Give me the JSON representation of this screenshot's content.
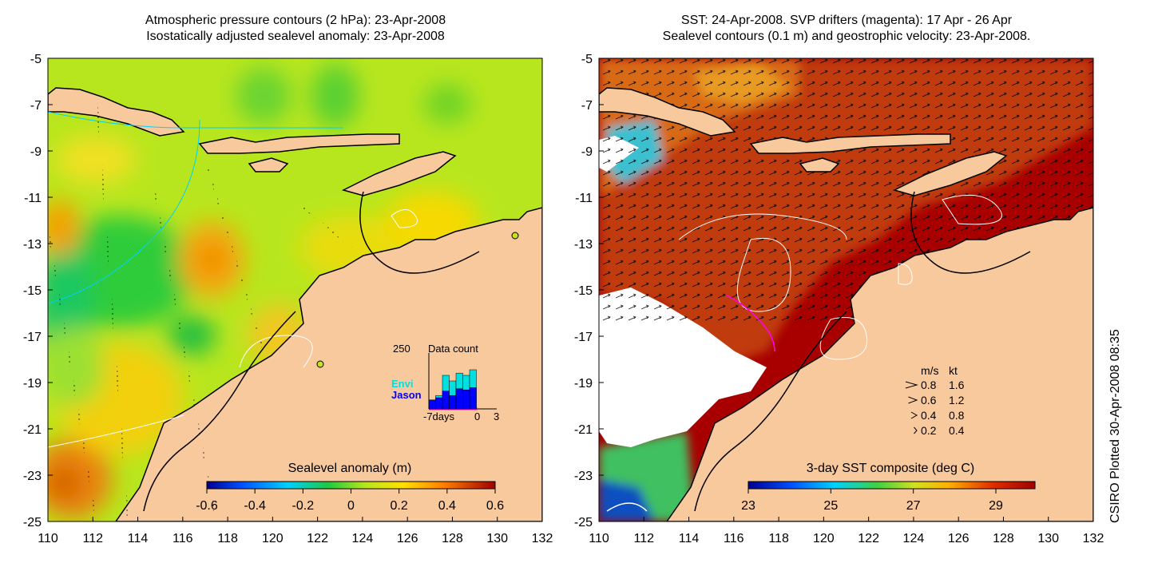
{
  "left_panel": {
    "title_line1": "Atmospheric pressure contours (2 hPa): 23-Apr-2008",
    "title_line2": "Isostatically adjusted sealevel anomaly: 23-Apr-2008",
    "colorbar": {
      "label": "Sealevel anomaly (m)",
      "ticks": [
        "-0.6",
        "-0.4",
        "-0.2",
        "0",
        "0.2",
        "0.4",
        "0.6"
      ]
    },
    "inset": {
      "title": "Data count",
      "ymax_label": "250",
      "series_envi": "Envi",
      "series_jason": "Jason",
      "x_labels": [
        "-7days",
        "0",
        "3"
      ],
      "envi_counts": [
        40,
        60,
        150,
        125,
        160,
        150,
        175
      ],
      "jason_counts": [
        40,
        50,
        80,
        60,
        90,
        85,
        95
      ]
    }
  },
  "right_panel": {
    "title_line1": "SST: 24-Apr-2008. SVP drifters (magenta): 17 Apr - 26 Apr",
    "title_line2": "Sealevel contours (0.1 m) and geostrophic velocity: 23-Apr-2008.",
    "colorbar": {
      "label": "3-day SST composite (deg C)",
      "ticks": [
        "23",
        "25",
        "27",
        "29"
      ]
    },
    "velocity_legend": {
      "header_ms": "m/s",
      "header_kt": "kt",
      "rows": [
        {
          "ms": "0.8",
          "kt": "1.6"
        },
        {
          "ms": "0.6",
          "kt": "1.2"
        },
        {
          "ms": "0.4",
          "kt": "0.8"
        },
        {
          "ms": "0.2",
          "kt": "0.4"
        }
      ]
    }
  },
  "axes": {
    "x_ticks": [
      "110",
      "112",
      "114",
      "116",
      "118",
      "120",
      "122",
      "124",
      "126",
      "128",
      "130",
      "132"
    ],
    "y_ticks": [
      "-5",
      "-7",
      "-9",
      "-11",
      "-13",
      "-15",
      "-17",
      "-19",
      "-21",
      "-23",
      "-25"
    ]
  },
  "side_note": "CSIRO Plotted 30-Apr-2008 08:35",
  "colors": {
    "land": "#f9c99e",
    "ocean_green": "#b8e61e",
    "sst_warm": "#a80000",
    "drifter": "#ff00ff"
  }
}
